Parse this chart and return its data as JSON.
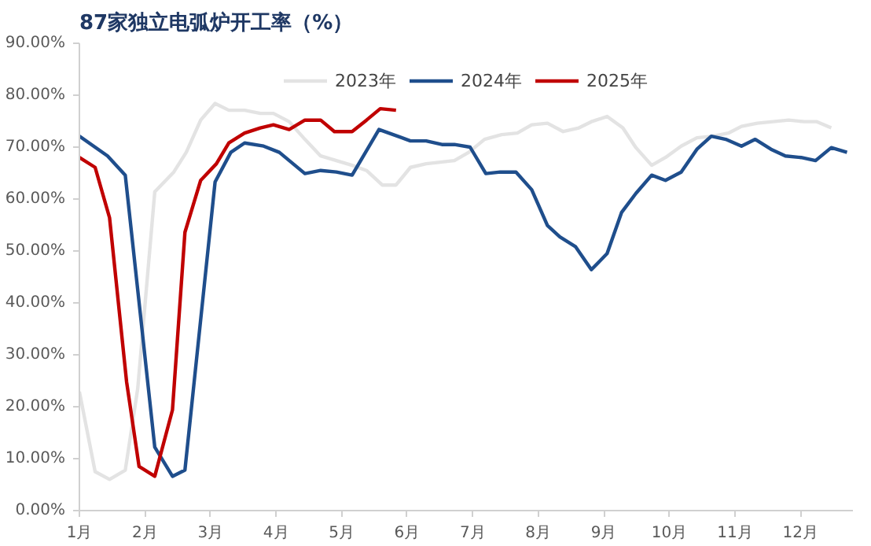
{
  "chart_data": {
    "type": "line",
    "title": "87家独立电弧炉开工率（%）",
    "xlim": [
      1,
      12.8
    ],
    "xticks": [
      {
        "value": 1,
        "label": "1月"
      },
      {
        "value": 2,
        "label": "2月"
      },
      {
        "value": 3,
        "label": "3月"
      },
      {
        "value": 4,
        "label": "4月"
      },
      {
        "value": 5,
        "label": "5月"
      },
      {
        "value": 6,
        "label": "6月"
      },
      {
        "value": 7,
        "label": "7月"
      },
      {
        "value": 8,
        "label": "8月"
      },
      {
        "value": 9,
        "label": "9月"
      },
      {
        "value": 10,
        "label": "10月"
      },
      {
        "value": 11,
        "label": "11月"
      },
      {
        "value": 12,
        "label": "12月"
      }
    ],
    "ylim": [
      0,
      90
    ],
    "yticks": [
      {
        "value": 0,
        "label": "0.00%"
      },
      {
        "value": 10,
        "label": "10.00%"
      },
      {
        "value": 20,
        "label": "20.00%"
      },
      {
        "value": 30,
        "label": "30.00%"
      },
      {
        "value": 40,
        "label": "40.00%"
      },
      {
        "value": 50,
        "label": "50.00%"
      },
      {
        "value": 60,
        "label": "60.00%"
      },
      {
        "value": 70,
        "label": "70.00%"
      },
      {
        "value": 80,
        "label": "80.00%"
      },
      {
        "value": 90,
        "label": "90.00%"
      }
    ],
    "grid": false,
    "legend": "top",
    "line_style": "solid",
    "series": [
      {
        "name": "2023年",
        "color": "#e3e3e3",
        "x": [
          1.0,
          1.24,
          1.46,
          1.7,
          1.89,
          2.15,
          2.44,
          2.63,
          2.85,
          3.07,
          3.28,
          3.52,
          3.76,
          3.96,
          4.2,
          4.44,
          4.68,
          4.92,
          5.16,
          5.38,
          5.62,
          5.83,
          6.05,
          6.29,
          6.72,
          6.94,
          7.18,
          7.44,
          7.68,
          7.9,
          8.14,
          8.38,
          8.62,
          8.81,
          9.05,
          9.29,
          9.49,
          9.73,
          9.94,
          10.18,
          10.42,
          10.66,
          10.9,
          11.1,
          11.34,
          11.58,
          11.82,
          12.06,
          12.25,
          12.47
        ],
        "values": [
          22.9,
          7.5,
          6.0,
          7.8,
          23.5,
          61.4,
          65.2,
          69.0,
          75.2,
          78.4,
          77.1,
          77.1,
          76.5,
          76.5,
          74.9,
          71.5,
          68.3,
          67.4,
          66.5,
          65.5,
          62.7,
          62.7,
          66.1,
          66.8,
          67.4,
          69.0,
          71.5,
          72.4,
          72.7,
          74.3,
          74.6,
          73.0,
          73.7,
          74.9,
          75.9,
          73.7,
          69.9,
          66.5,
          68.0,
          70.2,
          71.8,
          72.1,
          72.7,
          74.0,
          74.6,
          74.9,
          75.2,
          74.9,
          74.9,
          73.7
        ]
      },
      {
        "name": "2024年",
        "color": "#1f4e8c",
        "x": [
          1.0,
          1.43,
          1.7,
          2.15,
          2.42,
          2.61,
          3.07,
          3.31,
          3.52,
          3.81,
          4.05,
          4.44,
          4.68,
          4.92,
          5.16,
          5.57,
          6.05,
          6.29,
          6.53,
          6.72,
          6.96,
          7.2,
          7.42,
          7.66,
          7.9,
          8.14,
          8.33,
          8.57,
          8.81,
          9.05,
          9.27,
          9.49,
          9.73,
          9.94,
          10.18,
          10.42,
          10.64,
          10.86,
          11.1,
          11.31,
          11.55,
          11.77,
          12.01,
          12.23,
          12.47,
          12.71
        ],
        "values": [
          72.1,
          68.3,
          64.6,
          12.2,
          6.6,
          7.8,
          63.3,
          69.0,
          70.8,
          70.2,
          69.0,
          64.9,
          65.5,
          65.2,
          64.6,
          73.4,
          71.2,
          71.2,
          70.5,
          70.5,
          70.0,
          64.9,
          65.2,
          65.2,
          61.8,
          54.9,
          52.7,
          50.8,
          46.4,
          49.5,
          57.4,
          61.1,
          64.6,
          63.6,
          65.2,
          69.6,
          72.1,
          71.5,
          70.2,
          71.5,
          69.6,
          68.3,
          68.0,
          67.4,
          69.9,
          69.0
        ]
      },
      {
        "name": "2025年",
        "color": "#c00000",
        "x": [
          1.0,
          1.24,
          1.46,
          1.72,
          1.91,
          2.15,
          2.42,
          2.61,
          2.85,
          3.09,
          3.28,
          3.52,
          3.76,
          3.96,
          4.2,
          4.44,
          4.68,
          4.89,
          5.16,
          5.38,
          5.59,
          5.83
        ],
        "values": [
          68.0,
          66.1,
          56.4,
          24.8,
          8.5,
          6.6,
          19.4,
          53.6,
          63.6,
          66.8,
          70.8,
          72.7,
          73.7,
          74.3,
          73.4,
          75.2,
          75.2,
          73.0,
          73.0,
          75.2,
          77.4,
          77.1
        ]
      }
    ]
  }
}
